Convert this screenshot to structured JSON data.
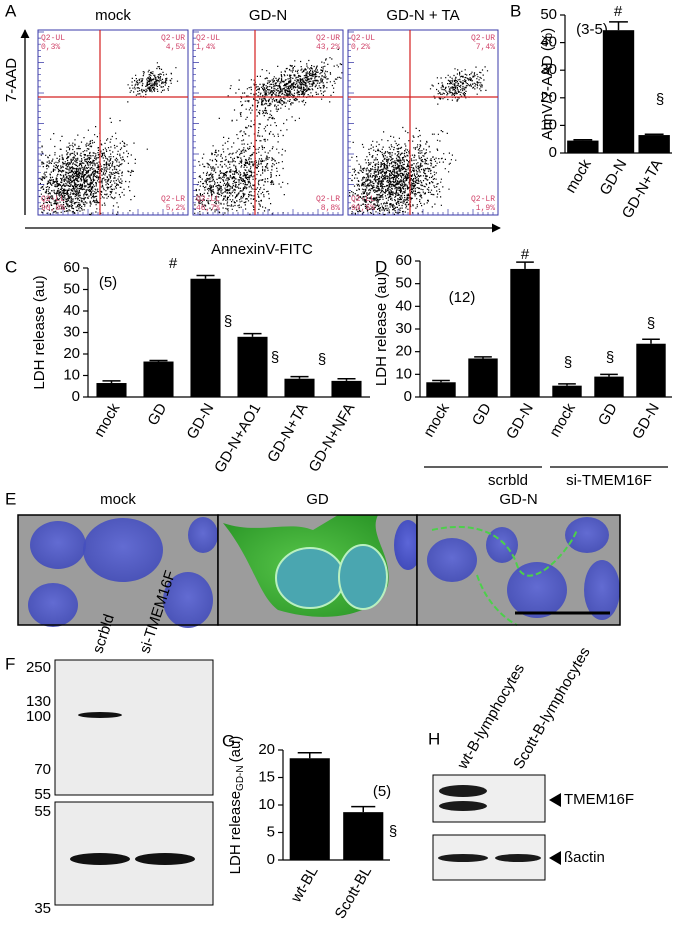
{
  "panel_labels": [
    "A",
    "B",
    "C",
    "D",
    "E",
    "F",
    "G",
    "H"
  ],
  "flow_cytometry": {
    "y_label": "7-AAD",
    "x_label": "AnnexinV-FITC",
    "plots": [
      {
        "title": "mock",
        "quadrants": [
          {
            "name": "Q2-UL",
            "value": "0,3%"
          },
          {
            "name": "Q2-UR",
            "value": "4,5%"
          },
          {
            "name": "Q2-LL",
            "value": "90,0%"
          },
          {
            "name": "Q2-LR",
            "value": "5,2%"
          }
        ]
      },
      {
        "title": "GD-N",
        "quadrants": [
          {
            "name": "Q2-UL",
            "value": "1,4%"
          },
          {
            "name": "Q2-UR",
            "value": "43,2%"
          },
          {
            "name": "Q2-LL",
            "value": "46,7%"
          },
          {
            "name": "Q2-LR",
            "value": "8,8%"
          }
        ]
      },
      {
        "title": "GD-N + TA",
        "quadrants": [
          {
            "name": "Q2-UL",
            "value": "0,2%"
          },
          {
            "name": "Q2-UR",
            "value": "7,4%"
          },
          {
            "name": "Q2-LL",
            "value": "90,5%"
          },
          {
            "name": "Q2-LR",
            "value": "1,9%"
          }
        ]
      }
    ]
  },
  "chart_data": [
    {
      "type": "bar",
      "y_label": "AnnV/7-AAD (%)",
      "categories": [
        "mock",
        "GD-N",
        "GD-N+TA"
      ],
      "values": [
        4.5,
        44.5,
        6.5
      ],
      "errors": [
        0.3,
        3,
        0.3
      ],
      "ylim": [
        0,
        50
      ],
      "yticks": [
        0,
        10,
        20,
        30,
        40,
        50
      ],
      "color": "#000000",
      "annotations": [
        "(3-5)",
        "#",
        "§"
      ]
    },
    {
      "type": "bar",
      "y_label": "LDH release (au)",
      "categories": [
        "mock",
        "GD",
        "GD-N",
        "GD-N+AO1",
        "GD-N+TA",
        "GD-N+NFA"
      ],
      "values": [
        6.5,
        16.5,
        55,
        28,
        8.5,
        7.5
      ],
      "errors": [
        1,
        0.5,
        1.5,
        1.5,
        1,
        1
      ],
      "ylim": [
        0,
        60
      ],
      "yticks": [
        0,
        10,
        20,
        30,
        40,
        50,
        60
      ],
      "color": "#000000",
      "annotations": [
        "(5)",
        "#",
        "§",
        "§",
        "§"
      ]
    },
    {
      "type": "bar",
      "y_label": "LDH release (au)",
      "categories": [
        "mock",
        "GD",
        "GD-N",
        "mock",
        "GD",
        "GD-N"
      ],
      "values": [
        6.5,
        17,
        56.5,
        5,
        9,
        23.5
      ],
      "errors": [
        0.8,
        0.7,
        3,
        0.8,
        1,
        2
      ],
      "ylim": [
        0,
        60
      ],
      "yticks": [
        0,
        10,
        20,
        30,
        40,
        50,
        60
      ],
      "color": "#000000",
      "groups": [
        "scrbld",
        "si-TMEM16F"
      ],
      "annotations": [
        "(12)",
        "#",
        "§",
        "§",
        "§"
      ]
    },
    {
      "type": "bar",
      "y_label": {
        "main": "LDH release",
        "sub": "GD-N",
        "unit": "(au)"
      },
      "categories": [
        "wt-BL",
        "Scott-BL"
      ],
      "values": [
        18.5,
        8.7
      ],
      "errors": [
        1,
        1
      ],
      "ylim": [
        0,
        20
      ],
      "yticks": [
        0,
        5,
        10,
        15,
        20
      ],
      "color": "#000000",
      "annotations": [
        "(5)",
        "§"
      ]
    }
  ],
  "microscopy": {
    "titles": [
      "mock",
      "GD",
      "GD-N"
    ]
  },
  "blot_f": {
    "lanes": [
      "scrbld",
      "si-TMEM16F"
    ],
    "markers_upper": [
      250,
      130,
      100,
      70,
      55
    ],
    "markers_lower": [
      55,
      35
    ]
  },
  "blot_h": {
    "lanes": [
      "wt-B-lymphocytes",
      "Scott-B-lymphocytes"
    ],
    "bands": [
      "TMEM16F",
      "ßactin"
    ]
  }
}
